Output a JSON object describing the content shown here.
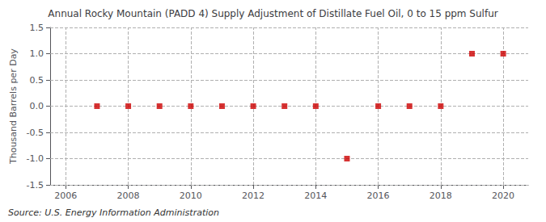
{
  "chart_data": {
    "type": "scatter",
    "title": "Annual Rocky Mountain (PADD 4) Supply Adjustment of Distillate Fuel Oil, 0 to 15 ppm Sulfur",
    "ylabel": "Thousand Barrels per Day",
    "annotations": [
      "Source: U.S. Energy Information Administration"
    ],
    "x": [
      2007,
      2008,
      2009,
      2010,
      2011,
      2012,
      2013,
      2014,
      2015,
      2016,
      2017,
      2018,
      2019,
      2020
    ],
    "values": [
      0.0,
      0.0,
      0.0,
      0.0,
      0.0,
      0.0,
      0.0,
      0.0,
      -1.0,
      0.0,
      0.0,
      0.0,
      1.0,
      1.0
    ],
    "color": "#cc0000",
    "marker": "square",
    "xlim": [
      2005.5,
      2020.8
    ],
    "xticks": [
      2006,
      2008,
      2010,
      2012,
      2014,
      2016,
      2018,
      2020
    ],
    "ylim": [
      -1.5,
      1.5
    ],
    "yticks": [
      -1.5,
      {
        "value": -1.0,
        "label": "-1.0"
      },
      -0.5,
      {
        "value": 0.0,
        "label": "0.0"
      },
      0.5,
      {
        "value": 1.0,
        "label": "1.0"
      },
      1.5
    ],
    "grid": true
  }
}
